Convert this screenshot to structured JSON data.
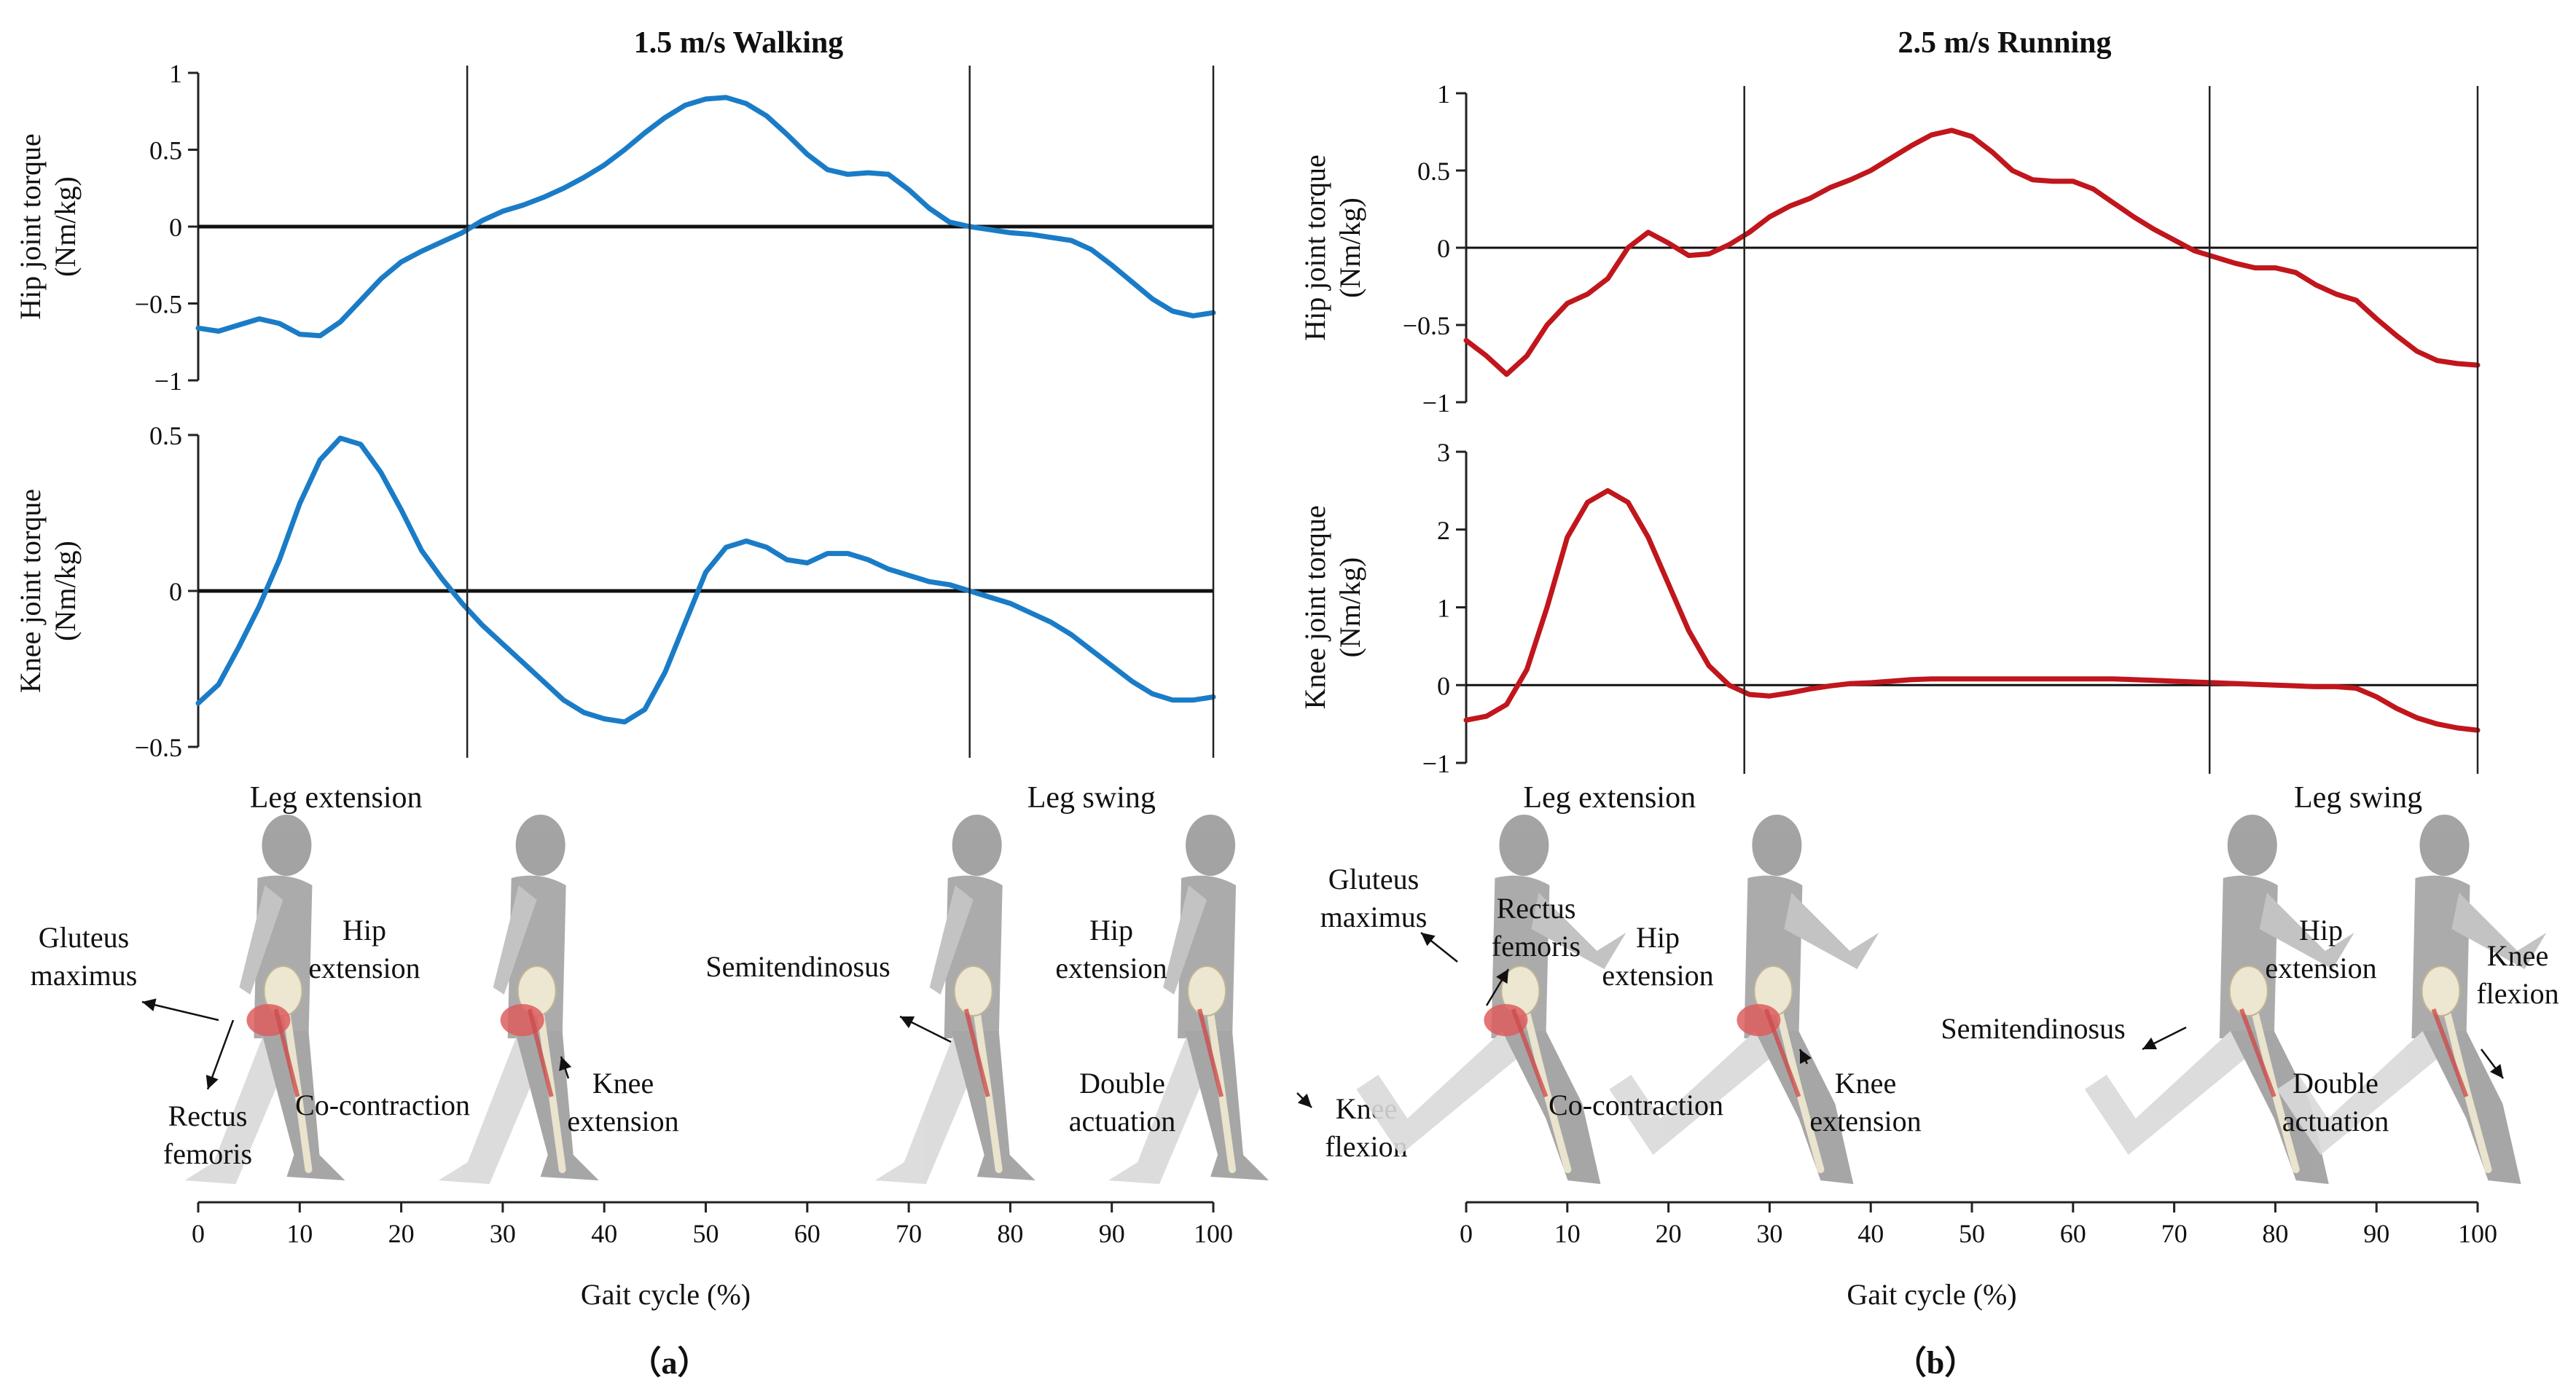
{
  "chart_data": [
    {
      "type": "line",
      "title": "1.5 m/s Walking",
      "color": "#1a7cc7",
      "x_axis": {
        "label": "Gait cycle (%)",
        "lim": [
          0,
          100
        ],
        "ticks": [
          0,
          10,
          20,
          30,
          40,
          50,
          60,
          70,
          80,
          90,
          100
        ]
      },
      "phase_dividers_pct": [
        26.5,
        76
      ],
      "phase_labels": [
        "Leg extension",
        "Leg swing"
      ],
      "panel_label": "（a）",
      "subplots": [
        {
          "ylabel": [
            "Hip joint torque",
            "(Nm/kg)"
          ],
          "ylim": [
            -1,
            1
          ],
          "yticks": [
            1,
            0.5,
            0,
            -0.5,
            -1
          ],
          "ytick_labels": [
            "1",
            "0.5",
            "0",
            "−0.5",
            "−1"
          ],
          "x": [
            0,
            2,
            4,
            6,
            8,
            10,
            12,
            14,
            16,
            18,
            20,
            22,
            24,
            26,
            28,
            30,
            32,
            34,
            36,
            38,
            40,
            42,
            44,
            46,
            48,
            50,
            52,
            54,
            56,
            58,
            60,
            62,
            64,
            66,
            68,
            70,
            72,
            74,
            76,
            78,
            80,
            82,
            84,
            86,
            88,
            90,
            92,
            94,
            96,
            98,
            100
          ],
          "y": [
            -0.66,
            -0.68,
            -0.64,
            -0.6,
            -0.63,
            -0.7,
            -0.71,
            -0.62,
            -0.48,
            -0.34,
            -0.23,
            -0.16,
            -0.1,
            -0.04,
            0.04,
            0.1,
            0.14,
            0.19,
            0.25,
            0.32,
            0.4,
            0.5,
            0.61,
            0.71,
            0.79,
            0.83,
            0.84,
            0.8,
            0.72,
            0.6,
            0.47,
            0.37,
            0.34,
            0.35,
            0.34,
            0.24,
            0.12,
            0.03,
            0.0,
            -0.02,
            -0.04,
            -0.05,
            -0.07,
            -0.09,
            -0.15,
            -0.25,
            -0.36,
            -0.47,
            -0.55,
            -0.58,
            -0.56
          ]
        },
        {
          "ylabel": [
            "Knee joint torque",
            "(Nm/kg)"
          ],
          "ylim": [
            -0.5,
            0.5
          ],
          "yticks": [
            0.5,
            0,
            -0.5
          ],
          "ytick_labels": [
            "0.5",
            "0",
            "−0.5"
          ],
          "x": [
            0,
            2,
            4,
            6,
            8,
            10,
            12,
            14,
            16,
            18,
            20,
            22,
            24,
            26,
            28,
            30,
            32,
            34,
            36,
            38,
            40,
            42,
            44,
            46,
            48,
            50,
            52,
            54,
            56,
            58,
            60,
            62,
            64,
            66,
            68,
            70,
            72,
            74,
            76,
            78,
            80,
            82,
            84,
            86,
            88,
            90,
            92,
            94,
            96,
            98,
            100
          ],
          "y": [
            -0.36,
            -0.3,
            -0.18,
            -0.05,
            0.1,
            0.28,
            0.42,
            0.49,
            0.47,
            0.38,
            0.26,
            0.13,
            0.04,
            -0.04,
            -0.11,
            -0.17,
            -0.23,
            -0.29,
            -0.35,
            -0.39,
            -0.41,
            -0.42,
            -0.38,
            -0.26,
            -0.1,
            0.06,
            0.14,
            0.16,
            0.14,
            0.1,
            0.09,
            0.12,
            0.12,
            0.1,
            0.07,
            0.05,
            0.03,
            0.02,
            0.0,
            -0.02,
            -0.04,
            -0.07,
            -0.1,
            -0.14,
            -0.19,
            -0.24,
            -0.29,
            -0.33,
            -0.35,
            -0.35,
            -0.34
          ]
        }
      ],
      "annotations": [
        {
          "text": [
            "Gluteus",
            "maximus"
          ]
        },
        {
          "text": [
            "Rectus",
            "femoris"
          ]
        },
        {
          "text": [
            "Hip",
            "extension"
          ]
        },
        {
          "text": [
            "Co-contraction"
          ]
        },
        {
          "text": [
            "Knee",
            "extension"
          ]
        },
        {
          "text": [
            "Semitendinosus"
          ]
        },
        {
          "text": [
            "Hip",
            "extension"
          ]
        },
        {
          "text": [
            "Double",
            "actuation"
          ]
        },
        {
          "text": [
            "Knee",
            "flexion"
          ]
        }
      ]
    },
    {
      "type": "line",
      "title": "2.5 m/s Running",
      "color": "#c0161c",
      "x_axis": {
        "label": "Gait cycle (%)",
        "lim": [
          0,
          100
        ],
        "ticks": [
          0,
          10,
          20,
          30,
          40,
          50,
          60,
          70,
          80,
          90,
          100
        ]
      },
      "phase_dividers_pct": [
        27.5,
        73.5
      ],
      "phase_labels": [
        "Leg extension",
        "Leg swing"
      ],
      "panel_label": "（b）",
      "subplots": [
        {
          "ylabel": [
            "Hip joint torque",
            "(Nm/kg)"
          ],
          "ylim": [
            -1,
            1
          ],
          "yticks": [
            1,
            0.5,
            0,
            -0.5,
            -1
          ],
          "ytick_labels": [
            "1",
            "0.5",
            "0",
            "−0.5",
            "−1"
          ],
          "x": [
            0,
            2,
            4,
            6,
            8,
            10,
            12,
            14,
            16,
            18,
            20,
            22,
            24,
            26,
            28,
            30,
            32,
            34,
            36,
            38,
            40,
            42,
            44,
            46,
            48,
            50,
            52,
            54,
            56,
            58,
            60,
            62,
            64,
            66,
            68,
            70,
            72,
            74,
            76,
            78,
            80,
            82,
            84,
            86,
            88,
            90,
            92,
            94,
            96,
            98,
            100
          ],
          "y": [
            -0.6,
            -0.7,
            -0.82,
            -0.7,
            -0.5,
            -0.36,
            -0.3,
            -0.2,
            0.0,
            0.1,
            0.03,
            -0.05,
            -0.04,
            0.02,
            0.1,
            0.2,
            0.27,
            0.32,
            0.39,
            0.44,
            0.5,
            0.58,
            0.66,
            0.73,
            0.76,
            0.72,
            0.62,
            0.5,
            0.44,
            0.43,
            0.43,
            0.38,
            0.29,
            0.2,
            0.12,
            0.05,
            -0.02,
            -0.06,
            -0.1,
            -0.13,
            -0.13,
            -0.16,
            -0.24,
            -0.3,
            -0.34,
            -0.46,
            -0.57,
            -0.67,
            -0.73,
            -0.75,
            -0.76
          ]
        },
        {
          "ylabel": [
            "Knee joint torque",
            "(Nm/kg)"
          ],
          "ylim": [
            -1,
            3
          ],
          "yticks": [
            3,
            2,
            1,
            0,
            -1
          ],
          "ytick_labels": [
            "3",
            "2",
            "1",
            "0",
            "−1"
          ],
          "x": [
            0,
            2,
            4,
            6,
            8,
            10,
            12,
            14,
            16,
            18,
            20,
            22,
            24,
            26,
            28,
            30,
            32,
            34,
            36,
            38,
            40,
            42,
            44,
            46,
            48,
            50,
            52,
            54,
            56,
            58,
            60,
            62,
            64,
            66,
            68,
            70,
            72,
            74,
            76,
            78,
            80,
            82,
            84,
            86,
            88,
            90,
            92,
            94,
            96,
            98,
            100
          ],
          "y": [
            -0.45,
            -0.4,
            -0.25,
            0.2,
            1.0,
            1.9,
            2.35,
            2.5,
            2.35,
            1.9,
            1.3,
            0.7,
            0.25,
            0.0,
            -0.12,
            -0.14,
            -0.1,
            -0.05,
            -0.01,
            0.02,
            0.03,
            0.05,
            0.07,
            0.08,
            0.08,
            0.08,
            0.08,
            0.08,
            0.08,
            0.08,
            0.08,
            0.08,
            0.08,
            0.07,
            0.06,
            0.05,
            0.04,
            0.03,
            0.02,
            0.01,
            0.0,
            -0.01,
            -0.02,
            -0.02,
            -0.04,
            -0.15,
            -0.3,
            -0.42,
            -0.5,
            -0.55,
            -0.58
          ]
        }
      ],
      "annotations": [
        {
          "text": [
            "Gluteus",
            "maximus"
          ]
        },
        {
          "text": [
            "Rectus",
            "femoris"
          ]
        },
        {
          "text": [
            "Hip",
            "extension"
          ]
        },
        {
          "text": [
            "Co-contraction"
          ]
        },
        {
          "text": [
            "Knee",
            "extension"
          ]
        },
        {
          "text": [
            "Semitendinosus"
          ]
        },
        {
          "text": [
            "Hip",
            "extension"
          ]
        },
        {
          "text": [
            "Double",
            "actuation"
          ]
        },
        {
          "text": [
            "Knee",
            "flexion"
          ]
        }
      ]
    }
  ]
}
